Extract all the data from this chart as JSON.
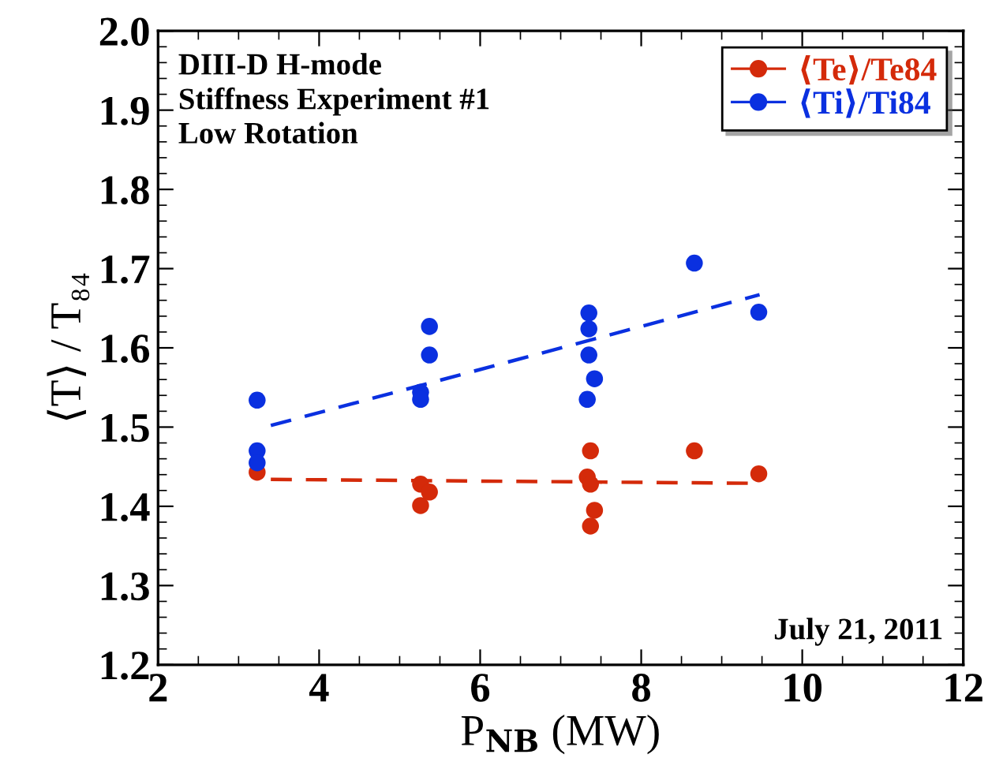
{
  "chart_data": {
    "type": "scatter",
    "xlabel": "P$_{NB}$ (MW)",
    "ylabel": "⟨T⟩ / T₈₄",
    "xlim": [
      2,
      12
    ],
    "xticks": [
      2,
      4,
      6,
      8,
      10,
      12
    ],
    "ylim": [
      1.2,
      2.0
    ],
    "yticks": [
      {
        "value": 1.2,
        "label": "1.2"
      },
      {
        "value": 1.3,
        "label": "1.3"
      },
      {
        "value": 1.4,
        "label": "1.4"
      },
      {
        "value": 1.5,
        "label": "1.5"
      },
      {
        "value": 1.6,
        "label": "1.6"
      },
      {
        "value": 1.7,
        "label": "1.7"
      },
      {
        "value": 1.8,
        "label": "1.8"
      },
      {
        "value": 1.9,
        "label": "1.9"
      },
      {
        "value": 2.0,
        "label": "2.0"
      }
    ],
    "grid": false,
    "legend": "top right",
    "marker": "circle",
    "annotations": [
      "DIII-D H-mode\nStiffness Experiment #1\nLow Rotation",
      "July 21, 2011"
    ],
    "series": [
      {
        "name": "⟨Te⟩/Te84",
        "color": "#d42a0a",
        "x": [
          3.23,
          5.26,
          5.37,
          5.26,
          7.37,
          7.33,
          7.37,
          7.42,
          7.37,
          8.66,
          9.46
        ],
        "values": [
          1.443,
          1.428,
          1.418,
          1.401,
          1.47,
          1.437,
          1.428,
          1.395,
          1.375,
          1.47,
          1.441
        ]
      },
      {
        "name": "⟨Ti⟩/Ti84",
        "color": "#0a30e0",
        "x": [
          3.23,
          3.23,
          3.23,
          5.37,
          5.37,
          5.26,
          5.26,
          7.35,
          7.35,
          7.35,
          7.42,
          7.33,
          8.66,
          9.46
        ],
        "values": [
          1.534,
          1.47,
          1.455,
          1.627,
          1.591,
          1.544,
          1.535,
          1.644,
          1.624,
          1.591,
          1.561,
          1.535,
          1.707,
          1.645
        ]
      },
      {
        "color": "#d42a0a",
        "type": "line",
        "line_style": "dashed",
        "marker": "none",
        "x": [
          3.4,
          9.47
        ],
        "values": [
          1.434,
          1.429
        ]
      },
      {
        "color": "#0a30e0",
        "type": "line",
        "line_style": "dashed",
        "marker": "none",
        "x": [
          3.4,
          9.47
        ],
        "values": [
          1.502,
          1.667
        ]
      }
    ]
  }
}
